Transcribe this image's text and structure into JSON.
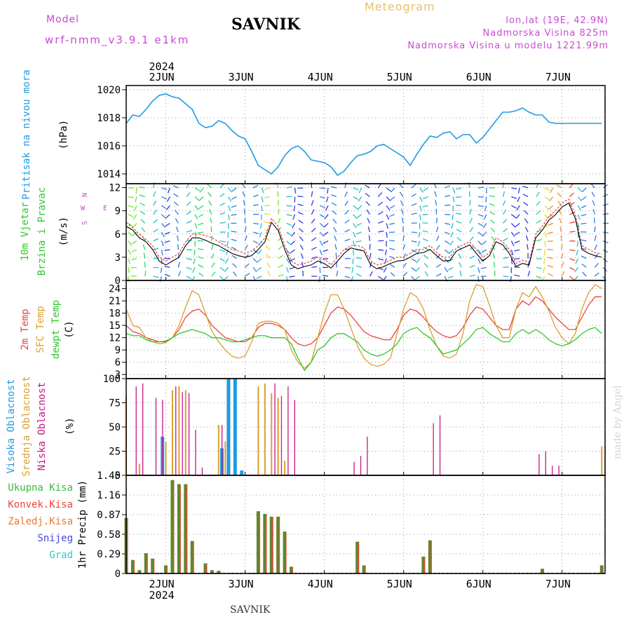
{
  "header": {
    "model_label": "Model",
    "model_name": "wrf-nmm_v3.9.1 e1km",
    "title": "SAVNIK",
    "product": "Meteogram",
    "coords": "lon,lat (19E, 42.9N)",
    "elevation": "Nadmorska Visina 825m",
    "model_elevation": "Nadmorska Visina u modelu 1221.99m"
  },
  "footer": {
    "station": "SAVNIK",
    "watermark": "made by Angel"
  },
  "colors": {
    "pressure": "#1e9be0",
    "temp2m": "#e8463c",
    "sfc": "#d9a030",
    "dewpt": "#2ec82e",
    "high": "#1e9be0",
    "mid": "#d9a030",
    "low": "#c8148c",
    "total": "#3cb93c",
    "conv": "#e8463c",
    "frozen": "#f07828",
    "snow": "#4646e6",
    "graupel": "#32c8c8",
    "magenta": "#c84bd2"
  },
  "chart_data": [
    {
      "id": "pressure",
      "type": "line",
      "ylabel": "Pritisak na nivou mora",
      "unit": "(hPa)",
      "ylim": [
        1013.3,
        1020.3
      ],
      "yticks": [
        "1020",
        "1018",
        "1016",
        "1014"
      ],
      "ytick_values": [
        1020,
        1018,
        1016,
        1014
      ],
      "top_axis": {
        "year": "2024",
        "days": [
          "2JUN",
          "3JUN",
          "4JUN",
          "5JUN",
          "6JUN",
          "7JUN"
        ]
      },
      "xlim": [
        0,
        145
      ],
      "days_x": [
        12,
        36,
        60,
        84,
        108,
        132
      ],
      "x": [
        0,
        2,
        4,
        6,
        8,
        10,
        12,
        14,
        16,
        18,
        20,
        22,
        24,
        26,
        28,
        30,
        32,
        34,
        36,
        38,
        40,
        42,
        44,
        46,
        48,
        50,
        52,
        54,
        56,
        58,
        60,
        62,
        64,
        66,
        68,
        70,
        72,
        74,
        76,
        78,
        80,
        82,
        84,
        86,
        88,
        90,
        92,
        94,
        96,
        98,
        100,
        102,
        104,
        106,
        108,
        110,
        112,
        114,
        116,
        118,
        120,
        122,
        124,
        126,
        128,
        130,
        132,
        134,
        136,
        138,
        140,
        142,
        144
      ],
      "values": [
        1017.6,
        1018.2,
        1018.1,
        1018.6,
        1019.2,
        1019.6,
        1019.7,
        1019.5,
        1019.4,
        1019.0,
        1018.6,
        1017.6,
        1017.3,
        1017.4,
        1017.8,
        1017.6,
        1017.1,
        1016.7,
        1016.5,
        1015.6,
        1014.6,
        1014.3,
        1014.0,
        1014.5,
        1015.3,
        1015.8,
        1016.0,
        1015.6,
        1015.0,
        1014.9,
        1014.8,
        1014.5,
        1013.9,
        1014.2,
        1014.8,
        1015.3,
        1015.4,
        1015.6,
        1016.0,
        1016.1,
        1015.8,
        1015.5,
        1015.2,
        1014.6,
        1015.4,
        1016.1,
        1016.7,
        1016.6,
        1016.9,
        1017.0,
        1016.5,
        1016.8,
        1016.8,
        1016.2,
        1016.6,
        1017.2,
        1017.8,
        1018.4,
        1018.4,
        1018.5,
        1018.7,
        1018.4,
        1018.2,
        1018.2,
        1017.7,
        1017.6,
        1017.6,
        1017.6,
        1017.6,
        1017.6,
        1017.6,
        1017.6,
        1017.6
      ]
    },
    {
      "id": "wind",
      "type": "line",
      "ylabel": "10m Vjetar",
      "ylabel2": "Brzina i Pravac",
      "unit": "(m/s)",
      "compass": [
        "W",
        "N",
        "E",
        "S"
      ],
      "ylim": [
        0,
        12.5
      ],
      "yticks": [
        "12",
        "9",
        "6",
        "3",
        "0"
      ],
      "ytick_values": [
        12,
        9,
        6,
        3,
        0
      ],
      "xlim": [
        0,
        145
      ],
      "x": [
        0,
        2,
        4,
        6,
        8,
        10,
        12,
        14,
        16,
        18,
        20,
        22,
        24,
        26,
        28,
        30,
        32,
        34,
        36,
        38,
        40,
        42,
        44,
        46,
        48,
        50,
        52,
        54,
        56,
        58,
        60,
        62,
        64,
        66,
        68,
        70,
        72,
        74,
        76,
        78,
        80,
        82,
        84,
        86,
        88,
        90,
        92,
        94,
        96,
        98,
        100,
        102,
        104,
        106,
        108,
        110,
        112,
        114,
        116,
        118,
        120,
        122,
        124,
        126,
        128,
        130,
        132,
        134,
        136,
        138,
        140,
        142,
        144
      ],
      "speed": [
        7.0,
        6.5,
        5.5,
        5.0,
        4.0,
        2.5,
        2.0,
        2.5,
        3.0,
        4.5,
        5.5,
        5.5,
        5.2,
        4.8,
        4.5,
        4.0,
        3.5,
        3.2,
        3.0,
        3.2,
        4.0,
        5.0,
        7.5,
        6.5,
        4.0,
        2.0,
        1.5,
        1.8,
        2.0,
        2.5,
        2.2,
        1.6,
        2.5,
        3.5,
        4.2,
        4.0,
        3.8,
        2.0,
        1.5,
        1.8,
        2.2,
        2.5,
        2.6,
        3.0,
        3.5,
        3.6,
        4.0,
        3.2,
        2.5,
        2.6,
        3.8,
        4.2,
        4.6,
        3.5,
        2.5,
        3.2,
        5.0,
        4.6,
        3.5,
        1.8,
        2.2,
        2.0,
        5.5,
        6.5,
        7.8,
        8.5,
        9.5,
        10.0,
        8.0,
        4.0,
        3.5,
        3.2,
        3.0
      ],
      "gust": [
        7.5,
        6.8,
        6.0,
        5.3,
        4.5,
        3.0,
        2.5,
        3.0,
        3.5,
        5.0,
        6.0,
        6.0,
        5.8,
        5.5,
        5.0,
        4.5,
        4.0,
        3.8,
        3.5,
        3.8,
        4.5,
        5.5,
        8.0,
        7.0,
        4.5,
        2.5,
        2.0,
        2.2,
        2.5,
        3.0,
        2.8,
        2.0,
        3.0,
        4.0,
        4.5,
        4.5,
        4.2,
        2.5,
        2.0,
        2.2,
        2.6,
        3.0,
        3.0,
        3.5,
        4.0,
        4.0,
        4.5,
        3.6,
        3.0,
        3.0,
        4.2,
        4.6,
        5.0,
        4.0,
        3.0,
        3.6,
        5.5,
        5.0,
        4.0,
        2.2,
        2.6,
        2.4,
        6.0,
        7.0,
        8.3,
        9.0,
        10.0,
        10.5,
        8.5,
        4.5,
        4.0,
        3.6,
        3.4
      ]
    },
    {
      "id": "temperature",
      "type": "line",
      "ylabel": "2m Temp",
      "ylabel2": "SFC Temp",
      "ylabel3": "dewpt Temp",
      "unit": "(C)",
      "ylim": [
        2,
        26
      ],
      "yticks": [
        "24",
        "21",
        "18",
        "15",
        "12",
        "9",
        "6",
        "3"
      ],
      "ytick_values": [
        24,
        21,
        18,
        15,
        12,
        9,
        6,
        3
      ],
      "xlim": [
        0,
        145
      ],
      "x": [
        0,
        2,
        4,
        6,
        8,
        10,
        12,
        14,
        16,
        18,
        20,
        22,
        24,
        26,
        28,
        30,
        32,
        34,
        36,
        38,
        40,
        42,
        44,
        46,
        48,
        50,
        52,
        54,
        56,
        58,
        60,
        62,
        64,
        66,
        68,
        70,
        72,
        74,
        76,
        78,
        80,
        82,
        84,
        86,
        88,
        90,
        92,
        94,
        96,
        98,
        100,
        102,
        104,
        106,
        108,
        110,
        112,
        114,
        116,
        118,
        120,
        122,
        124,
        126,
        128,
        130,
        132,
        134,
        136,
        138,
        140,
        142,
        144
      ],
      "series": [
        {
          "name": "2m Temp",
          "values": [
            15,
            13.5,
            13,
            12,
            11.5,
            11,
            11,
            12,
            14,
            17,
            18.5,
            19,
            17.5,
            15,
            13.5,
            12,
            11.5,
            11,
            11,
            12,
            14.5,
            15.5,
            15.5,
            15,
            14,
            12,
            10.5,
            10,
            10.5,
            12,
            15,
            18,
            19.5,
            19,
            17.5,
            15.5,
            13.5,
            12.5,
            12,
            11.5,
            11.5,
            14,
            17.5,
            19,
            18.5,
            17,
            15,
            13.5,
            12.5,
            12,
            12.5,
            14.5,
            17.5,
            19.5,
            19,
            17,
            15,
            14,
            14,
            19,
            21,
            20,
            22,
            21,
            19,
            17,
            15.5,
            14,
            14,
            17,
            20,
            22,
            22
          ]
        },
        {
          "name": "SFC Temp",
          "values": [
            19,
            15,
            14.5,
            12,
            11,
            10.5,
            10.8,
            12,
            15,
            19.5,
            23.5,
            22.5,
            18,
            13.5,
            11,
            9,
            7.5,
            7,
            7.5,
            11,
            15.5,
            16,
            16,
            15.5,
            14,
            9,
            6,
            4.5,
            6,
            12,
            18,
            22.5,
            22.5,
            19,
            14.5,
            10,
            7,
            5.5,
            5,
            5.5,
            7,
            13,
            19,
            23,
            22,
            19,
            14,
            10,
            7.5,
            7,
            8,
            13,
            21,
            25,
            24.5,
            20,
            15,
            12,
            12,
            19,
            23,
            22,
            24.5,
            22,
            18.5,
            14.5,
            12,
            10.5,
            13,
            19,
            23,
            25,
            24
          ]
        },
        {
          "name": "dewpt Temp",
          "values": [
            13,
            12.5,
            12.5,
            11.5,
            11,
            11,
            11.2,
            12,
            13,
            13.5,
            14,
            13.5,
            13,
            12,
            12,
            11.5,
            11,
            11,
            11.5,
            12,
            12.5,
            12.5,
            12,
            12,
            12,
            10.5,
            7,
            4,
            6,
            9,
            10,
            12,
            13,
            13,
            12,
            11,
            9,
            8,
            7.5,
            8,
            9,
            10.5,
            13,
            14,
            14.5,
            13,
            12,
            10,
            8,
            8.5,
            9,
            10.5,
            12,
            14,
            14.5,
            13,
            12,
            11,
            11,
            13,
            14,
            13,
            14,
            13,
            11.5,
            10.5,
            10,
            10.5,
            11.5,
            13,
            14,
            14.5,
            13
          ]
        }
      ]
    },
    {
      "id": "clouds",
      "type": "bar",
      "ylabel": "Visoka Oblacnost",
      "ylabel2": "Srednja Oblacnost",
      "ylabel3": "Niska Oblacnost",
      "unit": "(%)",
      "ylim": [
        0,
        100
      ],
      "yticks": [
        "100",
        "75",
        "50",
        "25",
        "0"
      ],
      "ytick_values": [
        100,
        75,
        50,
        25,
        0
      ],
      "xlim": [
        0,
        145
      ],
      "x": [
        0,
        2,
        4,
        6,
        8,
        10,
        12,
        14,
        16,
        18,
        20,
        22,
        24,
        26,
        28,
        30,
        32,
        34,
        36,
        38,
        40,
        42,
        44,
        46,
        48,
        50,
        52,
        54,
        56,
        58,
        60,
        62,
        64,
        66,
        68,
        70,
        72,
        74,
        76,
        78,
        80,
        82,
        84,
        86,
        88,
        90,
        92,
        94,
        96,
        98,
        100,
        102,
        104,
        106,
        108,
        110,
        112,
        114,
        116,
        118,
        120,
        122,
        124,
        126,
        128,
        130,
        132,
        134,
        136,
        138,
        140,
        142,
        144
      ],
      "series": [
        {
          "name": "Visoka Oblacnost",
          "values": [
            0,
            0,
            0,
            0,
            0,
            0,
            40,
            0,
            0,
            0,
            0,
            0,
            0,
            0,
            0,
            28,
            100,
            100,
            5,
            0,
            0,
            0,
            0,
            0,
            0,
            0,
            0,
            0,
            0,
            0,
            0,
            0,
            0,
            0,
            0,
            0,
            0,
            0,
            0,
            0,
            0,
            0,
            0,
            0,
            0,
            0,
            0,
            0,
            0,
            0,
            0,
            0,
            0,
            0,
            0,
            0,
            0,
            0,
            0,
            0,
            0,
            0,
            0,
            0,
            0,
            0,
            0,
            0,
            0,
            0,
            0,
            0,
            0
          ]
        },
        {
          "name": "Srednja Oblacnost",
          "values": [
            82,
            0,
            12,
            0,
            0,
            0,
            35,
            88,
            92,
            88,
            0,
            0,
            0,
            0,
            52,
            35,
            0,
            0,
            0,
            0,
            92,
            95,
            85,
            80,
            15,
            0,
            0,
            0,
            0,
            0,
            0,
            0,
            0,
            0,
            0,
            0,
            0,
            0,
            0,
            0,
            0,
            0,
            0,
            0,
            0,
            0,
            0,
            0,
            0,
            0,
            0,
            0,
            0,
            0,
            0,
            0,
            0,
            0,
            0,
            0,
            0,
            0,
            0,
            0,
            0,
            0,
            0,
            0,
            0,
            0,
            0,
            0,
            30
          ]
        },
        {
          "name": "Niska Oblacnost",
          "values": [
            0,
            92,
            95,
            0,
            80,
            78,
            0,
            92,
            86,
            85,
            47,
            8,
            0,
            0,
            52,
            0,
            0,
            0,
            0,
            0,
            0,
            0,
            95,
            82,
            92,
            78,
            0,
            0,
            0,
            0,
            0,
            0,
            0,
            0,
            14,
            20,
            40,
            0,
            0,
            0,
            0,
            0,
            0,
            0,
            0,
            0,
            54,
            62,
            0,
            0,
            0,
            0,
            0,
            0,
            0,
            0,
            0,
            0,
            0,
            0,
            0,
            0,
            22,
            25,
            10,
            10,
            0,
            0,
            0,
            0,
            0,
            0,
            30
          ]
        }
      ]
    },
    {
      "id": "precip",
      "type": "bar",
      "ylabel": "1hr Precip (mm)",
      "legend": [
        "Ukupna Kisa",
        "Konvek.Kisa",
        "Zaledj.Kisa",
        "Snijeg",
        "Grad"
      ],
      "ylim": [
        0,
        1.45
      ],
      "yticks": [
        "1.45",
        "1.16",
        "0.87",
        "0.58",
        "0.29",
        "0"
      ],
      "ytick_values": [
        1.45,
        1.16,
        0.87,
        0.58,
        0.29,
        0
      ],
      "bottom_axis": {
        "year": "2024",
        "days": [
          "2JUN",
          "3JUN",
          "4JUN",
          "5JUN",
          "6JUN",
          "7JUN"
        ]
      },
      "xlim": [
        0,
        145
      ],
      "x": [
        0,
        2,
        4,
        6,
        8,
        10,
        12,
        14,
        16,
        18,
        20,
        22,
        24,
        26,
        28,
        30,
        32,
        34,
        36,
        38,
        40,
        42,
        44,
        46,
        48,
        50,
        52,
        54,
        56,
        58,
        60,
        62,
        64,
        66,
        68,
        70,
        72,
        74,
        76,
        78,
        80,
        82,
        84,
        86,
        88,
        90,
        92,
        94,
        96,
        98,
        100,
        102,
        104,
        106,
        108,
        110,
        112,
        114,
        116,
        118,
        120,
        122,
        124,
        126,
        128,
        130,
        132,
        134,
        136,
        138,
        140,
        142,
        144
      ],
      "values": [
        0.82,
        0.2,
        0.05,
        0.3,
        0.22,
        0,
        0.12,
        1.38,
        1.32,
        1.32,
        0.48,
        0,
        0.15,
        0.05,
        0.04,
        0,
        0,
        0,
        0,
        0,
        0.92,
        0.88,
        0.84,
        0.84,
        0.62,
        0.1,
        0,
        0,
        0,
        0,
        0,
        0,
        0,
        0,
        0,
        0.47,
        0.12,
        0,
        0,
        0,
        0,
        0,
        0,
        0,
        0,
        0.25,
        0.49,
        0,
        0,
        0,
        0,
        0,
        0,
        0,
        0,
        0,
        0,
        0,
        0,
        0,
        0,
        0,
        0,
        0.07,
        0,
        0,
        0,
        0,
        0,
        0,
        0,
        0,
        0.12
      ]
    }
  ]
}
